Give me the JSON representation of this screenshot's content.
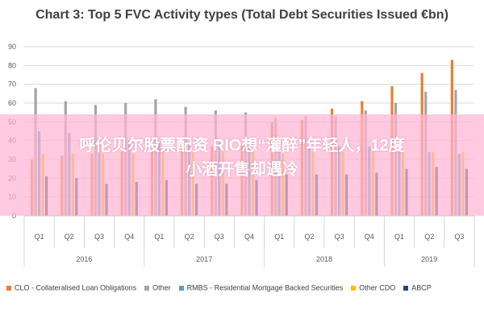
{
  "chart_data": {
    "type": "bar",
    "title": "Chart 3: Top 5 FVC Activity types (Total Debt Securities Issued €bn)",
    "ylim": [
      0,
      90
    ],
    "yticks": [
      0,
      10,
      20,
      30,
      40,
      50,
      60,
      70,
      80,
      90
    ],
    "grid": true,
    "legend": "bottom",
    "quarters": [
      "Q1",
      "Q2",
      "Q3",
      "Q4",
      "Q1",
      "Q2",
      "Q3",
      "Q4",
      "Q1",
      "Q2",
      "Q3",
      "Q4",
      "Q1",
      "Q2",
      "Q3"
    ],
    "years": [
      {
        "label": "2016",
        "span": 4
      },
      {
        "label": "2017",
        "span": 4
      },
      {
        "label": "2018",
        "span": 4
      },
      {
        "label": "2019",
        "span": 3
      }
    ],
    "series": [
      {
        "name": "CLO - Collateralised Loan Obligations",
        "color": "#ED7D31",
        "values": [
          30,
          32,
          33,
          34,
          35,
          36,
          37,
          38,
          50,
          51,
          57,
          61,
          69,
          76,
          83
        ]
      },
      {
        "name": "Other",
        "color": "#A5A5A5",
        "values": [
          68,
          61,
          59,
          60,
          62,
          58,
          56,
          55,
          52,
          53,
          53,
          56,
          60,
          66,
          67
        ]
      },
      {
        "name": "RMBS - Residential Mortgage Backed Securities",
        "color": "#5B9BD5",
        "values": [
          45,
          44,
          40,
          40,
          39,
          39,
          39,
          38,
          37,
          37,
          37,
          37,
          35,
          34,
          33
        ]
      },
      {
        "name": "Other CDO",
        "color": "#FFC000",
        "values": [
          33,
          33,
          33,
          33,
          34,
          34,
          34,
          34,
          33,
          34,
          34,
          34,
          34,
          34,
          34
        ]
      },
      {
        "name": "ABCP",
        "color": "#264478",
        "values": [
          21,
          20,
          17,
          18,
          19,
          17,
          17,
          19,
          22,
          22,
          22,
          23,
          25,
          26,
          25
        ]
      }
    ]
  },
  "overlay": {
    "lines": [
      "呼伦贝尔股票配资 RIO想“灌醉”年轻人，12度",
      "小酒开售却遇冷"
    ]
  }
}
